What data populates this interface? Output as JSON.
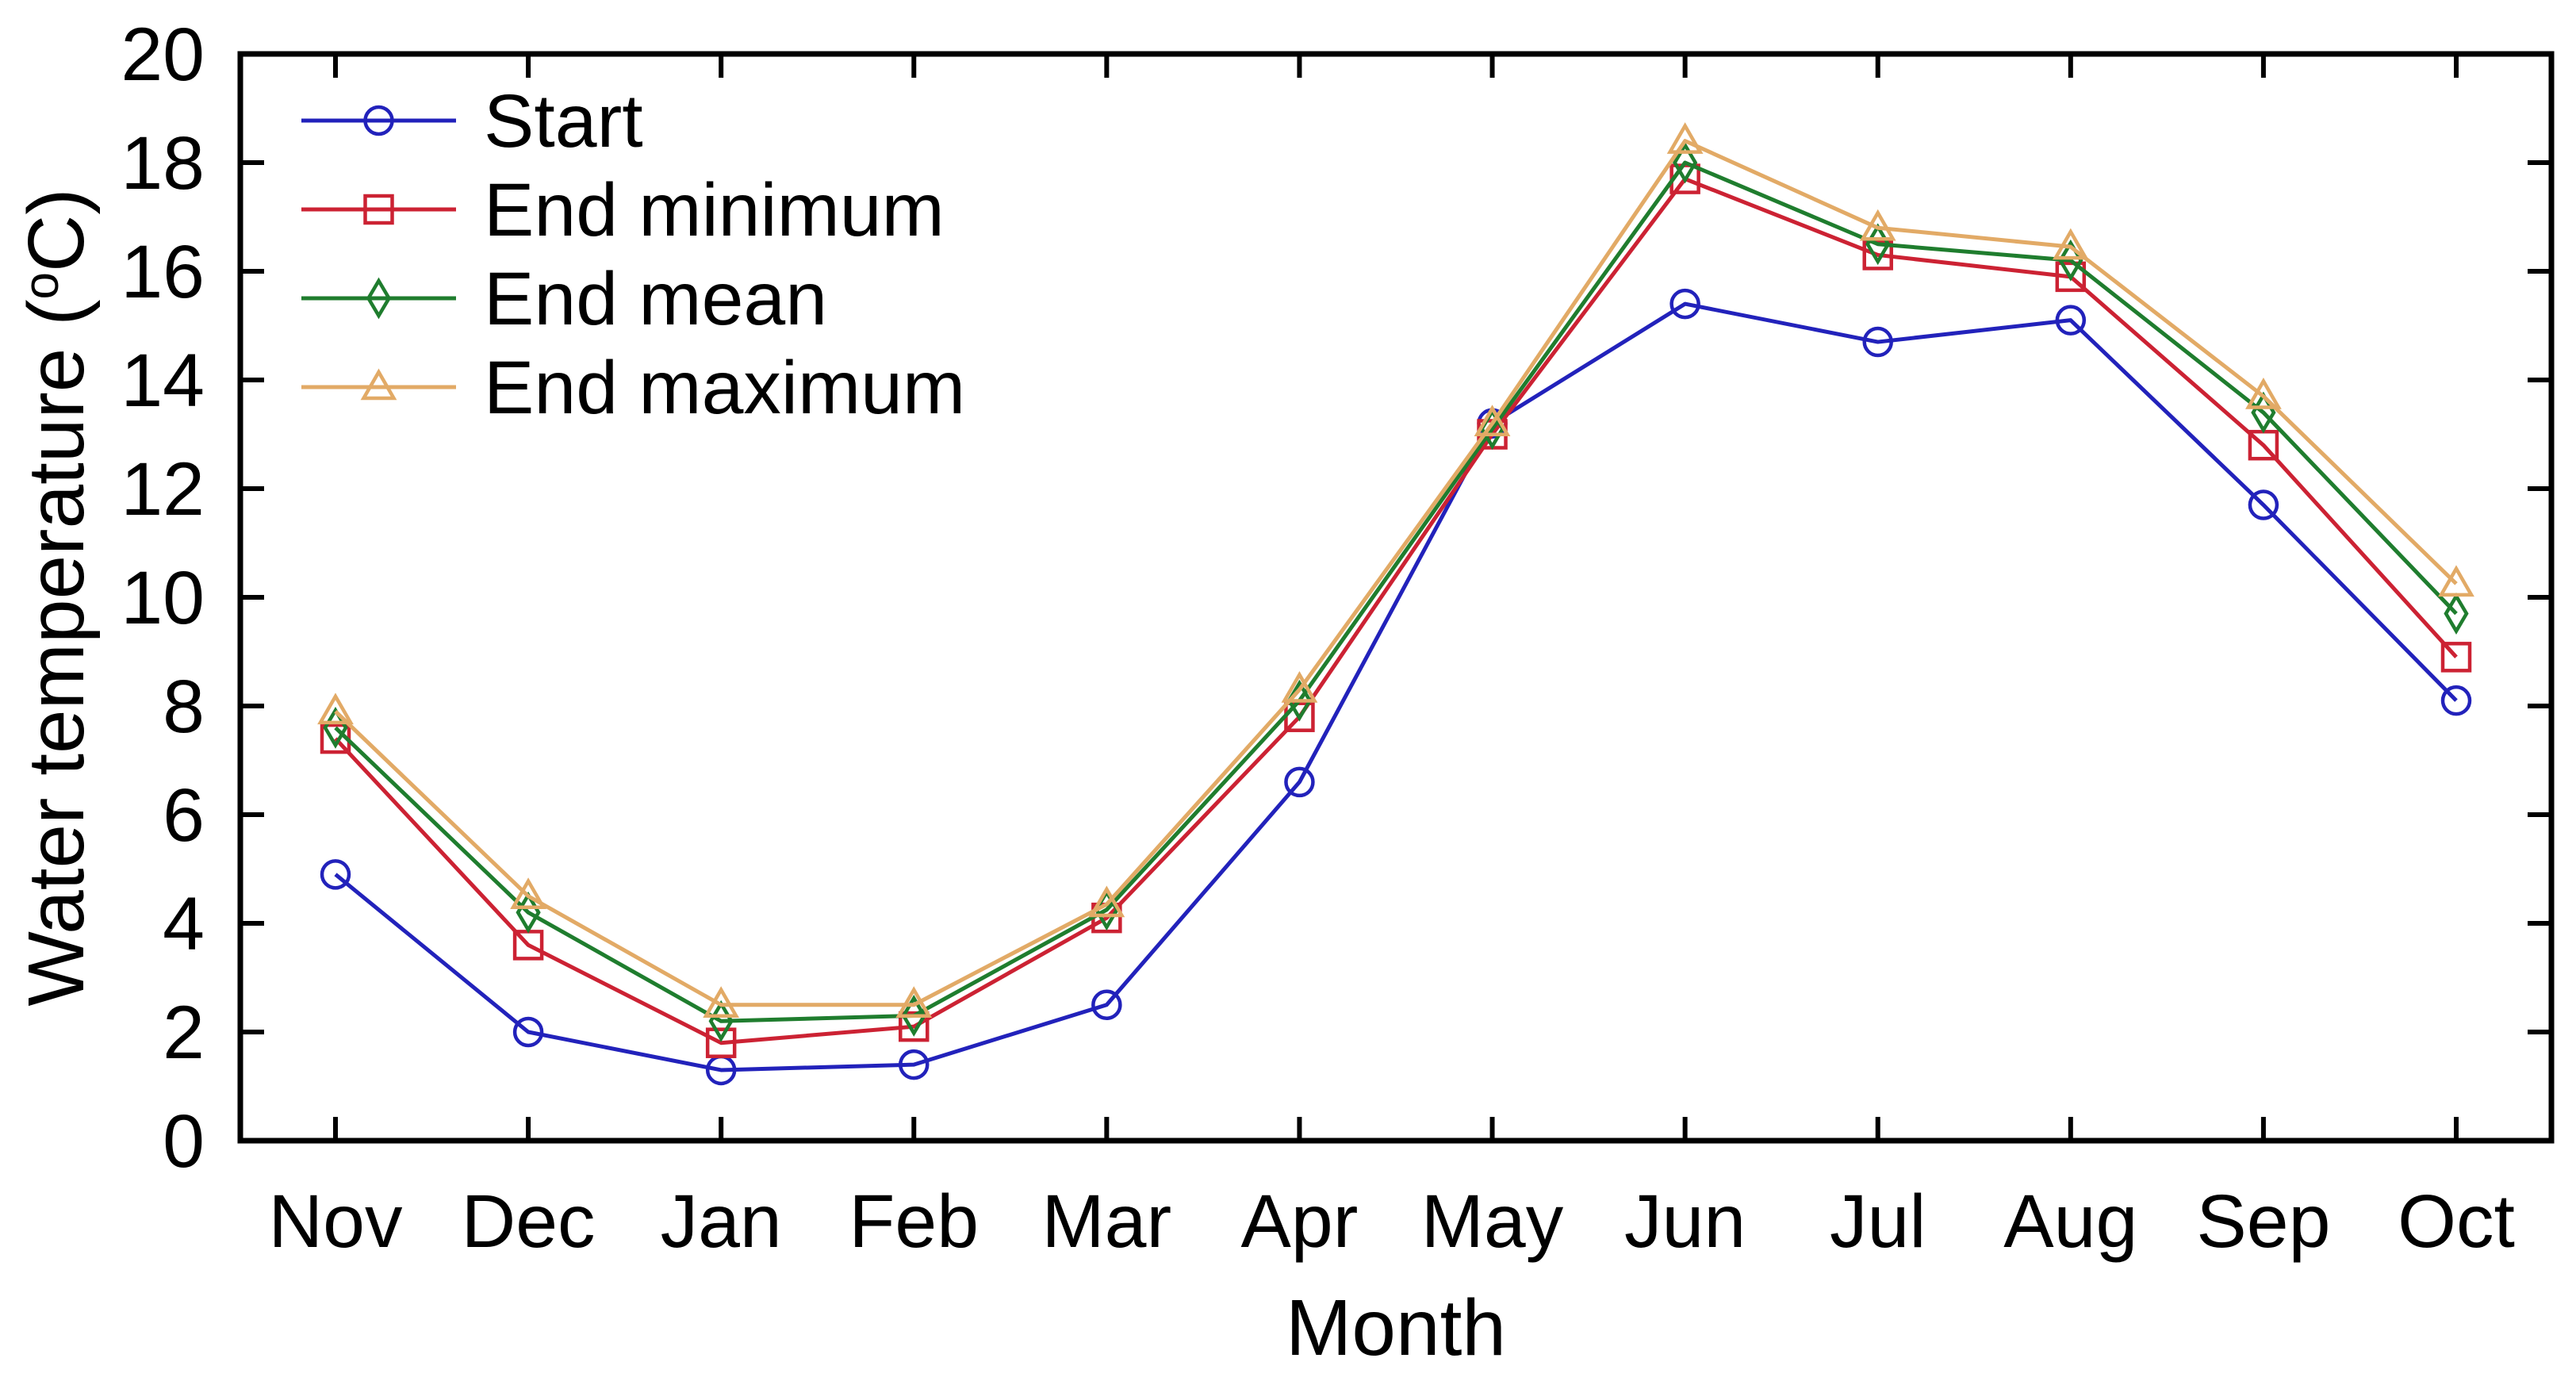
{
  "figure": {
    "background": "#ffffff",
    "text_color": "#000000",
    "axis_color": "#000000"
  },
  "chart_data": {
    "type": "line",
    "title": "",
    "xlabel": "Month",
    "ylabel": "Water temperature (°C)",
    "categories": [
      "Nov",
      "Dec",
      "Jan",
      "Feb",
      "Mar",
      "Apr",
      "May",
      "Jun",
      "Jul",
      "Aug",
      "Sep",
      "Oct"
    ],
    "ylim": [
      0,
      20
    ],
    "ytick_step": 2,
    "ytick_labels": [
      "0",
      "2",
      "4",
      "6",
      "8",
      "10",
      "12",
      "14",
      "16",
      "18",
      "20"
    ],
    "grid": false,
    "legend_position": "top-left",
    "legend_entries": [
      "Start",
      "End minimum",
      "End mean",
      "End maximum"
    ],
    "series": [
      {
        "name": "Start",
        "marker": "circle",
        "color": "#2222bb",
        "values": [
          4.9,
          2.0,
          1.3,
          1.4,
          2.5,
          6.6,
          13.2,
          15.4,
          14.7,
          15.1,
          11.7,
          8.1
        ]
      },
      {
        "name": "End minimum",
        "marker": "square",
        "color": "#cc2233",
        "values": [
          7.4,
          3.6,
          1.8,
          2.1,
          4.1,
          7.8,
          13.0,
          17.7,
          16.3,
          15.9,
          12.8,
          8.9
        ]
      },
      {
        "name": "End mean",
        "marker": "diamond",
        "color": "#1f7d2e",
        "values": [
          7.6,
          4.2,
          2.2,
          2.3,
          4.25,
          8.1,
          13.1,
          18.0,
          16.5,
          16.2,
          13.4,
          9.7
        ]
      },
      {
        "name": "End maximum",
        "marker": "triangle",
        "color": "#e2aa66",
        "values": [
          7.9,
          4.5,
          2.5,
          2.5,
          4.35,
          8.3,
          13.2,
          18.4,
          16.8,
          16.45,
          13.7,
          10.25
        ]
      }
    ]
  }
}
